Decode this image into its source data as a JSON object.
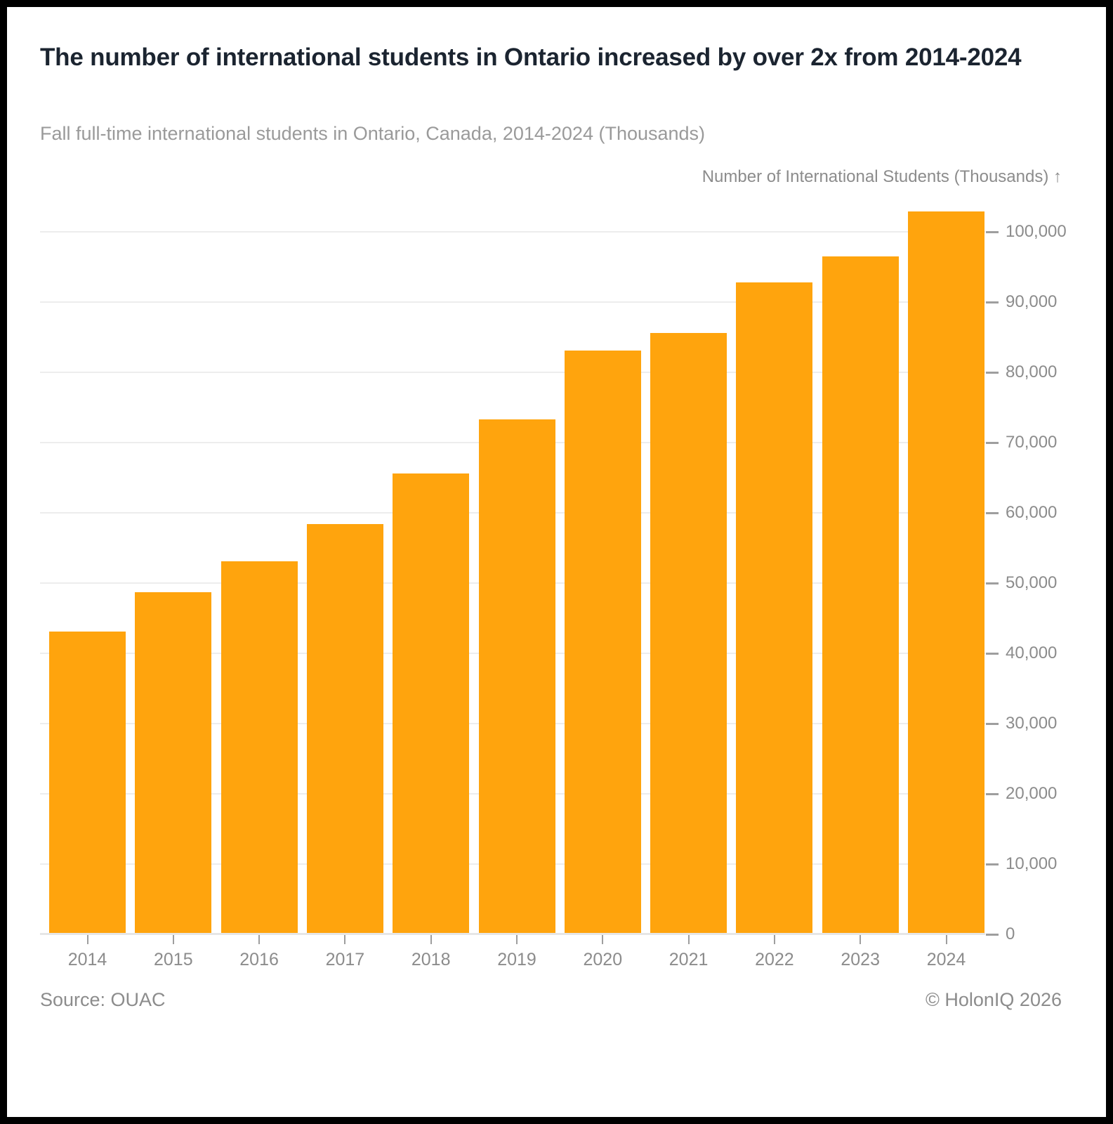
{
  "header": {
    "title": "The number of international students in Ontario increased by over 2x from 2014-2024",
    "subtitle": "Fall full-time international students in Ontario, Canada, 2014-2024 (Thousands)"
  },
  "chart_data": {
    "type": "bar",
    "title": "The number of international students in Ontario increased by over 2x from 2014-2024",
    "subtitle": "Fall full-time international students in Ontario, Canada, 2014-2024 (Thousands)",
    "categories": [
      "2014",
      "2015",
      "2016",
      "2017",
      "2018",
      "2019",
      "2020",
      "2021",
      "2022",
      "2023",
      "2024"
    ],
    "values": [
      43100,
      48700,
      53100,
      58400,
      65600,
      73300,
      83100,
      85600,
      92800,
      96500,
      102900
    ],
    "xlabel": "",
    "ylabel": "Number of International Students (Thousands)",
    "y_axis_title": "Number of International Students (Thousands) ↑",
    "y_axis_side": "right",
    "ylim": [
      0,
      103000
    ],
    "yticks": [
      0,
      10000,
      20000,
      30000,
      40000,
      50000,
      60000,
      70000,
      80000,
      90000,
      100000
    ],
    "ytick_labels": [
      "0",
      "10,000",
      "20,000",
      "30,000",
      "40,000",
      "50,000",
      "60,000",
      "70,000",
      "80,000",
      "90,000",
      "100,000"
    ],
    "grid": true,
    "legend": false
  },
  "colors": {
    "bar": "#ffa40d",
    "title_text": "#1b2430",
    "muted_text": "#8c8c8c",
    "subtitle_text": "#9a9a9a",
    "gridline": "#ededed",
    "axis_line": "#e6e6e6",
    "tick": "#9e9e9e",
    "frame": "#000000",
    "background": "#ffffff"
  },
  "footer": {
    "source": "Source: OUAC",
    "copyright": "© HolonIQ 2026"
  }
}
